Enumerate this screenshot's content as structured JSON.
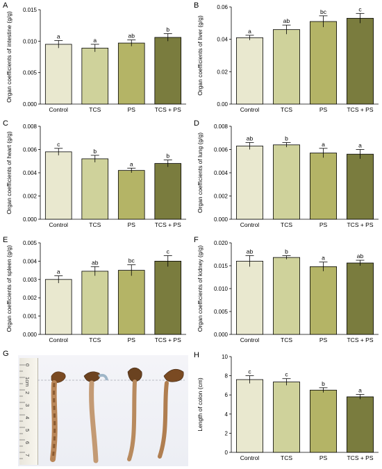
{
  "colors": {
    "control": "#e9e8cf",
    "tcs": "#cfd29b",
    "ps": "#b4b466",
    "tcsps": "#7a7c3e",
    "axis": "#000000"
  },
  "chart_data": [
    {
      "panel": "A",
      "type": "bar",
      "categories": [
        "Control",
        "TCS",
        "PS",
        "TCS + PS"
      ],
      "values": [
        0.0095,
        0.0089,
        0.0097,
        0.0106
      ],
      "errors": [
        0.0006,
        0.0006,
        0.0005,
        0.0006
      ],
      "letters": [
        "a",
        "a",
        "ab",
        "b"
      ],
      "ylabel": "Organ coefficients of intestine (g/g)",
      "ylim": [
        0,
        0.015
      ],
      "yticks": [
        0,
        0.005,
        0.01,
        0.015
      ],
      "yticklabels": [
        "0.000",
        "0.005",
        "0.010",
        "0.015"
      ]
    },
    {
      "panel": "B",
      "type": "bar",
      "categories": [
        "Control",
        "TCS",
        "PS",
        "TCS + PS"
      ],
      "values": [
        0.041,
        0.046,
        0.051,
        0.053
      ],
      "errors": [
        0.0015,
        0.0028,
        0.0035,
        0.003
      ],
      "letters": [
        "a",
        "ab",
        "bc",
        "c"
      ],
      "ylabel": "Organ coefficients of liver (g/g)",
      "ylim": [
        0,
        0.06
      ],
      "yticks": [
        0,
        0.02,
        0.04,
        0.06
      ],
      "yticklabels": [
        "0.00",
        "0.02",
        "0.04",
        "0.06"
      ]
    },
    {
      "panel": "C",
      "type": "bar",
      "categories": [
        "Control",
        "TCS",
        "PS",
        "TCS + PS"
      ],
      "values": [
        0.0058,
        0.0052,
        0.0042,
        0.0048
      ],
      "errors": [
        0.0003,
        0.0003,
        0.0002,
        0.0003
      ],
      "letters": [
        "c",
        "b",
        "a",
        "b"
      ],
      "ylabel": "Organ coefficients of heart (g/g)",
      "ylim": [
        0,
        0.008
      ],
      "yticks": [
        0,
        0.002,
        0.004,
        0.006,
        0.008
      ],
      "yticklabels": [
        "0.000",
        "0.002",
        "0.004",
        "0.006",
        "0.008"
      ]
    },
    {
      "panel": "D",
      "type": "bar",
      "categories": [
        "Control",
        "TCS",
        "PS",
        "TCS + PS"
      ],
      "values": [
        0.0063,
        0.0064,
        0.0057,
        0.0056
      ],
      "errors": [
        0.0003,
        0.0002,
        0.0004,
        0.0004
      ],
      "letters": [
        "ab",
        "b",
        "a",
        "a"
      ],
      "ylabel": "Organ coefficients of lung (g/g)",
      "ylim": [
        0,
        0.008
      ],
      "yticks": [
        0,
        0.002,
        0.004,
        0.006,
        0.008
      ],
      "yticklabels": [
        "0.000",
        "0.002",
        "0.004",
        "0.006",
        "0.008"
      ]
    },
    {
      "panel": "E",
      "type": "bar",
      "categories": [
        "Control",
        "TCS",
        "PS",
        "TCS + PS"
      ],
      "values": [
        0.003,
        0.00345,
        0.0035,
        0.004
      ],
      "errors": [
        0.0002,
        0.00025,
        0.0003,
        0.0003
      ],
      "letters": [
        "a",
        "ab",
        "bc",
        "c"
      ],
      "ylabel": "Organ coefficients of spleen (g/g)",
      "ylim": [
        0,
        0.005
      ],
      "yticks": [
        0,
        0.001,
        0.002,
        0.003,
        0.004,
        0.005
      ],
      "yticklabels": [
        "0.000",
        "0.001",
        "0.002",
        "0.003",
        "0.004",
        "0.005"
      ]
    },
    {
      "panel": "F",
      "type": "bar",
      "categories": [
        "Control",
        "TCS",
        "PS",
        "TCS + PS"
      ],
      "values": [
        0.016,
        0.0168,
        0.0148,
        0.0156
      ],
      "errors": [
        0.0012,
        0.0004,
        0.001,
        0.0006
      ],
      "letters": [
        "ab",
        "b",
        "a",
        "ab"
      ],
      "ylabel": "Organ coefficients of kidney (g/g)",
      "ylim": [
        0,
        0.02
      ],
      "yticks": [
        0,
        0.005,
        0.01,
        0.015,
        0.02
      ],
      "yticklabels": [
        "0.000",
        "0.005",
        "0.010",
        "0.015",
        "0.020"
      ]
    },
    {
      "panel": "H",
      "type": "bar",
      "categories": [
        "Control",
        "TCS",
        "PS",
        "TCS + PS"
      ],
      "values": [
        7.6,
        7.35,
        6.5,
        5.8
      ],
      "errors": [
        0.4,
        0.35,
        0.25,
        0.25
      ],
      "letters": [
        "c",
        "c",
        "b",
        "a"
      ],
      "ylabel": "Length of colon (cm)",
      "ylim": [
        0,
        10
      ],
      "yticks": [
        0,
        2,
        4,
        6,
        8,
        10
      ],
      "yticklabels": [
        "0",
        "2",
        "4",
        "6",
        "8",
        "10"
      ]
    }
  ],
  "photo": {
    "label": "G",
    "ruler_numbers": [
      "0",
      "1cm",
      "2",
      "3",
      "4",
      "5",
      "6",
      "7"
    ]
  }
}
